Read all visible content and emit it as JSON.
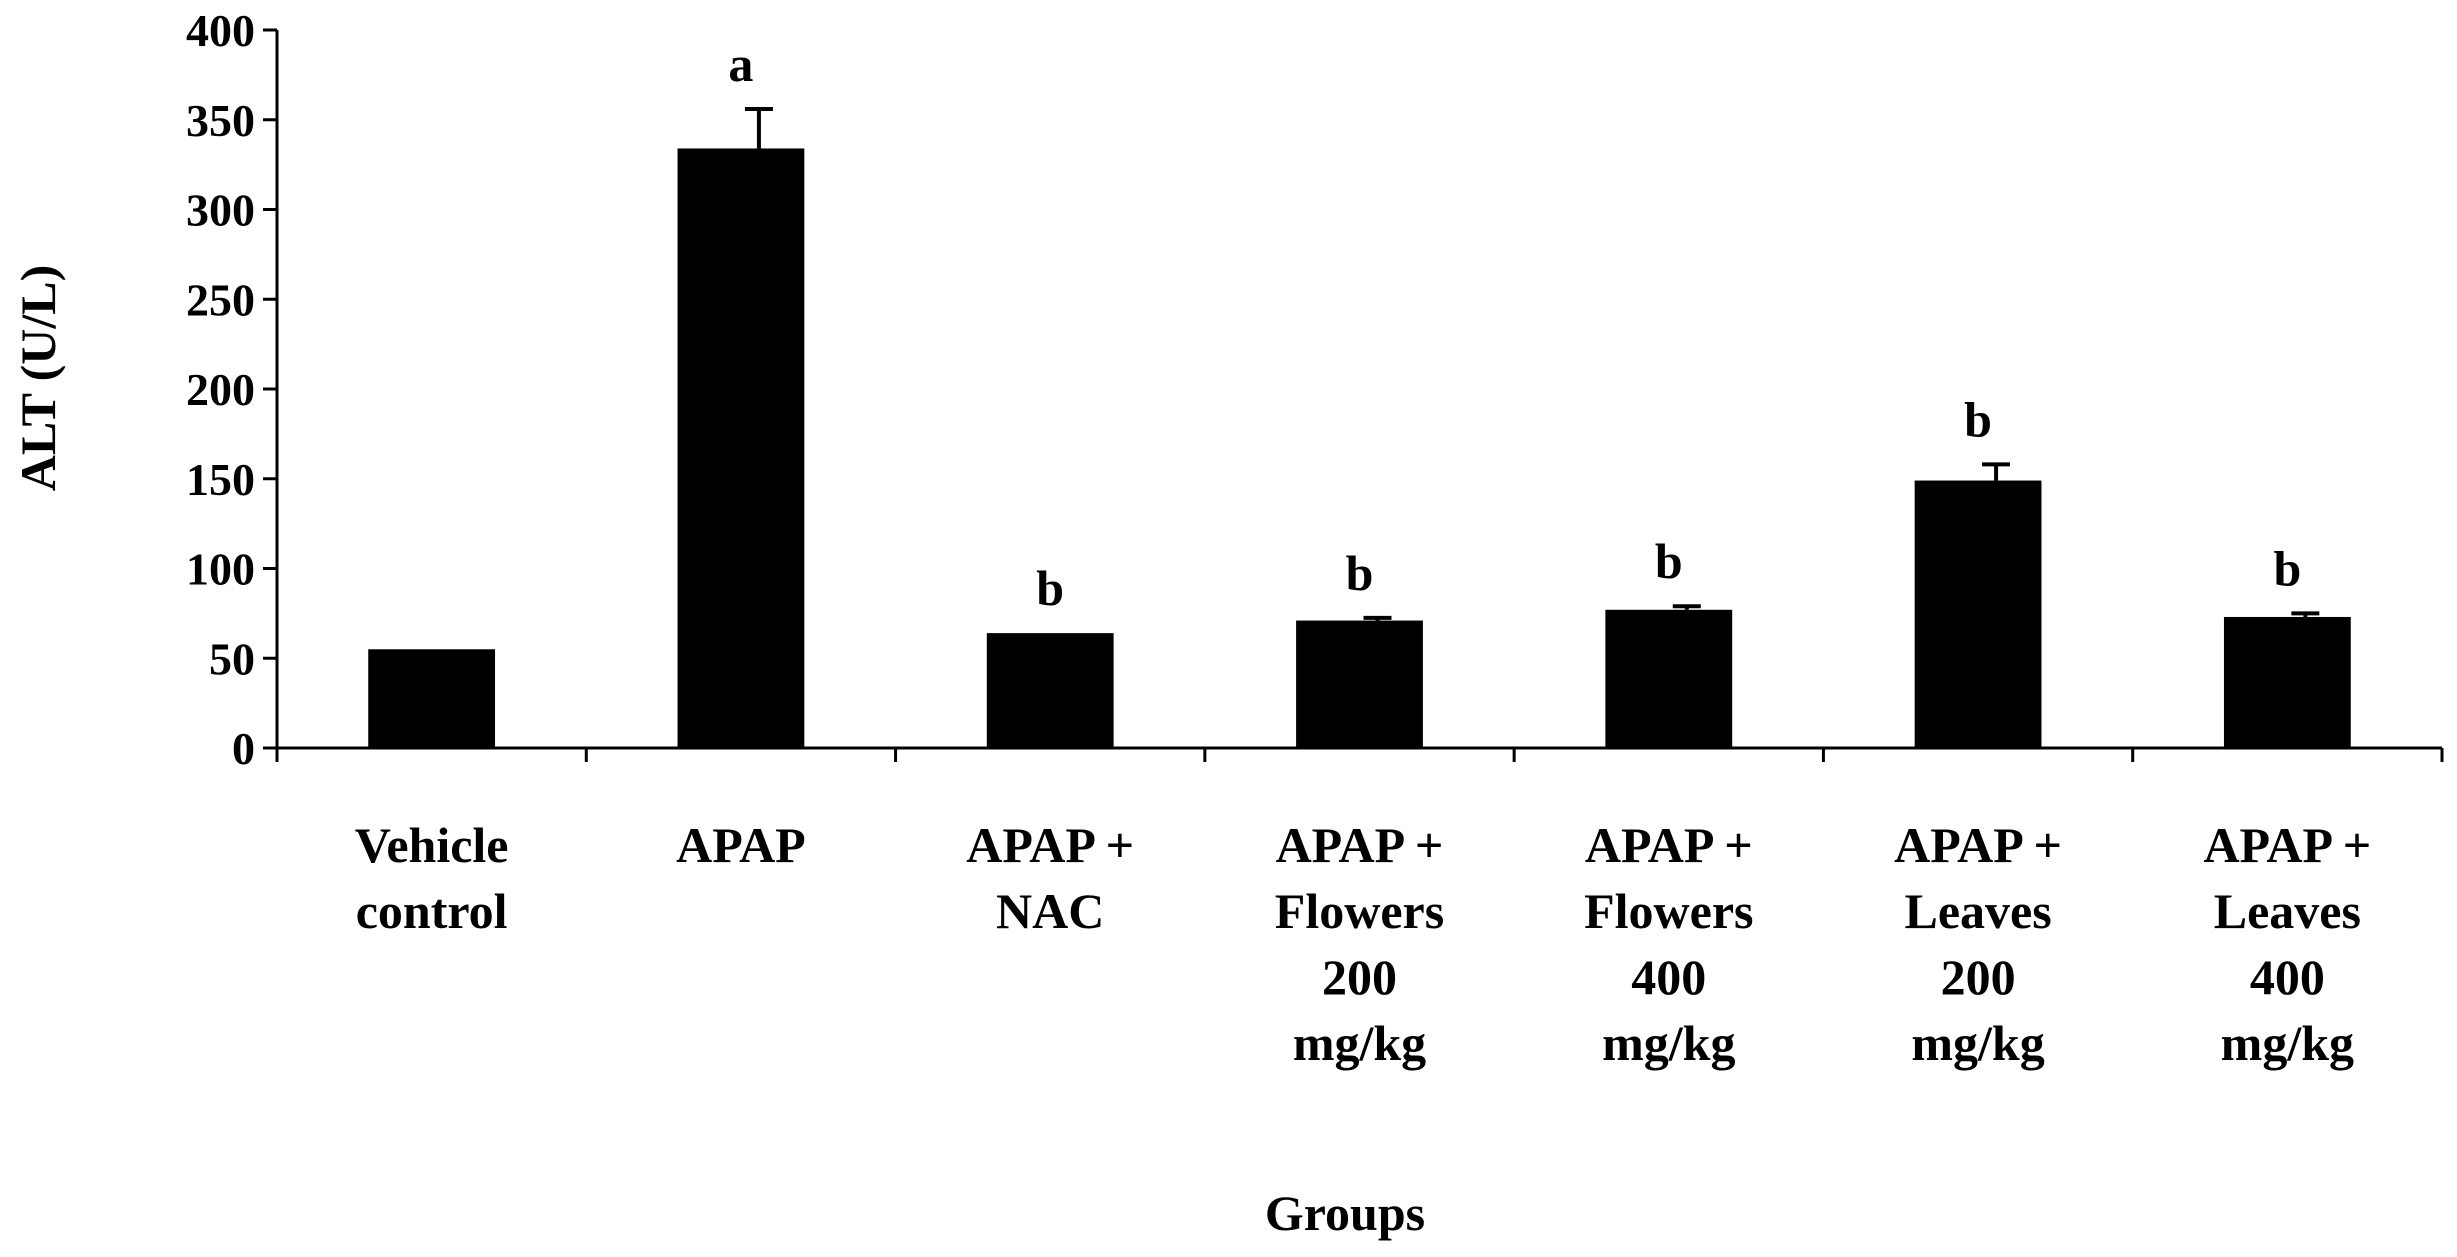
{
  "chart_data": {
    "type": "bar",
    "title": "",
    "xlabel": "Groups",
    "ylabel": "ALT (U/L)",
    "ylim": [
      0,
      400
    ],
    "yticks": [
      0,
      50,
      100,
      150,
      200,
      250,
      300,
      350,
      400
    ],
    "yticks_labels": [
      "0",
      "50",
      "100",
      "150",
      "200",
      "250",
      "300",
      "350",
      "400"
    ],
    "grid": false,
    "legend": "none",
    "bar_color": "#000000",
    "categories": [
      [
        "Vehicle",
        "control"
      ],
      [
        "APAP"
      ],
      [
        "APAP +",
        "NAC"
      ],
      [
        "APAP +",
        "Flowers",
        "200",
        "mg/kg"
      ],
      [
        "APAP +",
        "Flowers",
        "400",
        "mg/kg"
      ],
      [
        "APAP +",
        "Leaves",
        "200",
        "mg/kg"
      ],
      [
        "APAP +",
        "Leaves",
        "400",
        "mg/kg"
      ]
    ],
    "values": [
      55,
      334,
      64,
      71,
      77,
      149,
      73
    ],
    "errors": [
      0,
      22,
      0,
      1.5,
      2,
      9,
      2
    ],
    "annotations": [
      "",
      "a",
      "b",
      "b",
      "b",
      "b",
      "b"
    ]
  }
}
